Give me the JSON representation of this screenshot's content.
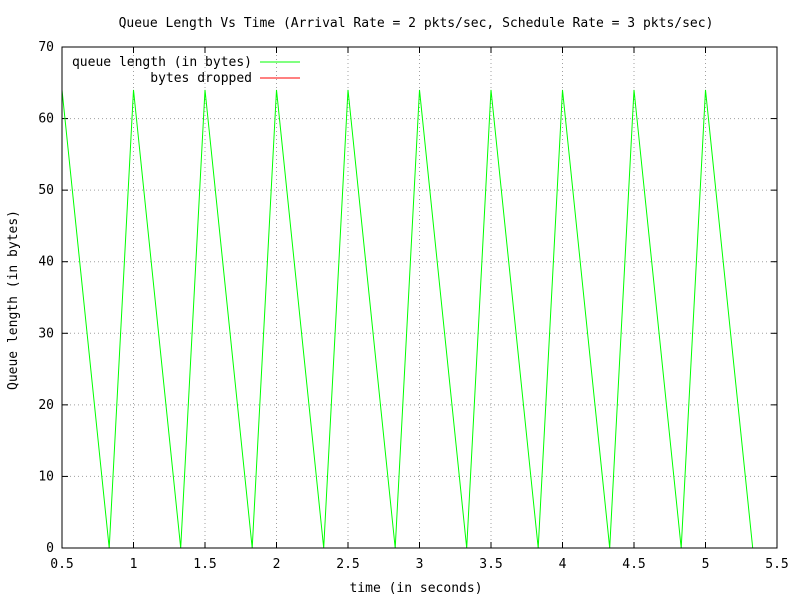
{
  "chart_data": {
    "type": "line",
    "title": "Queue Length Vs Time (Arrival Rate = 2 pkts/sec, Schedule Rate = 3 pkts/sec)",
    "xlabel": "time (in seconds)",
    "ylabel": "Queue length (in bytes)",
    "xlim": [
      0.5,
      5.5
    ],
    "ylim": [
      0,
      70
    ],
    "xticks": [
      "0.5",
      "1",
      "1.5",
      "2",
      "2.5",
      "3",
      "3.5",
      "4",
      "4.5",
      "5",
      "5.5"
    ],
    "yticks": [
      "0",
      "10",
      "20",
      "30",
      "40",
      "50",
      "60",
      "70"
    ],
    "grid": true,
    "legend_position": "top-left",
    "series": [
      {
        "name": "queue length (in bytes)",
        "color": "#00ff00",
        "x": [
          0.5,
          0.83,
          1.0,
          1.33,
          1.5,
          1.83,
          2.0,
          2.33,
          2.5,
          2.83,
          3.0,
          3.33,
          3.5,
          3.83,
          4.0,
          4.33,
          4.5,
          4.83,
          5.0,
          5.33
        ],
        "y": [
          64,
          0,
          64,
          0,
          64,
          0,
          64,
          0,
          64,
          0,
          64,
          0,
          64,
          0,
          64,
          0,
          64,
          0,
          64,
          0
        ]
      },
      {
        "name": "bytes dropped",
        "color": "#ff0000",
        "x": [],
        "y": []
      }
    ]
  }
}
